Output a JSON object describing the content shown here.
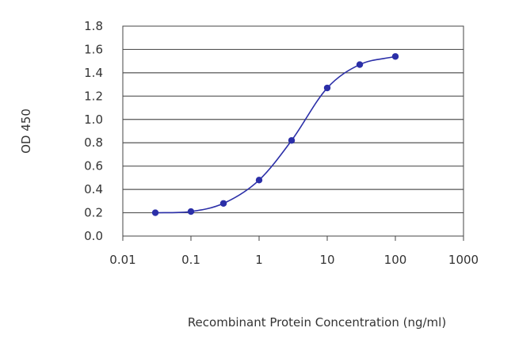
{
  "chart_data": {
    "type": "line",
    "title": "",
    "xlabel": "Recombinant Protein Concentration (ng/ml)",
    "ylabel": "OD 450",
    "x_scale": "log",
    "xlim": [
      0.01,
      1000
    ],
    "ylim": [
      0.0,
      1.8
    ],
    "x_ticks": [
      0.01,
      0.1,
      1,
      10,
      100,
      1000
    ],
    "x_tick_labels": [
      "0.01",
      "0.1",
      "1",
      "10",
      "100",
      "1000"
    ],
    "y_ticks": [
      0.0,
      0.2,
      0.4,
      0.6,
      0.8,
      1.0,
      1.2,
      1.4,
      1.6,
      1.8
    ],
    "y_tick_labels": [
      "0.0",
      "0.2",
      "0.4",
      "0.6",
      "0.8",
      "1.0",
      "1.2",
      "1.4",
      "1.6",
      "1.8"
    ],
    "grid": "horizontal",
    "legend": "none",
    "series": [
      {
        "x": [
          0.03,
          0.1,
          0.3,
          1,
          3,
          10,
          30,
          100
        ],
        "y": [
          0.2,
          0.21,
          0.28,
          0.48,
          0.82,
          1.27,
          1.47,
          1.54
        ],
        "color": "#2b2fa8"
      }
    ]
  }
}
